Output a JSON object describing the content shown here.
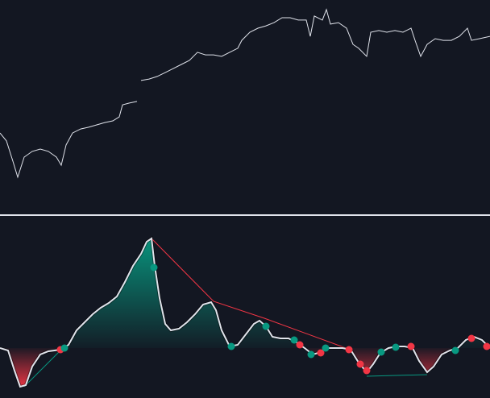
{
  "chart_data": [
    {
      "type": "line",
      "color": "#e0e3eb",
      "xlim": [
        0,
        608
      ],
      "ylim": [
        0,
        100
      ],
      "x": [
        0,
        8,
        16,
        22,
        30,
        40,
        50,
        60,
        70,
        76,
        82,
        90,
        100,
        110,
        120,
        130,
        140,
        148,
        152,
        160,
        170,
        172,
        175,
        185,
        195,
        205,
        215,
        225,
        235,
        245,
        255,
        265,
        275,
        285,
        295,
        300,
        310,
        320,
        330,
        340,
        350,
        360,
        370,
        380,
        385,
        390,
        400,
        405,
        410,
        420,
        430,
        438,
        445,
        455,
        460,
        470,
        480,
        490,
        500,
        510,
        515,
        522,
        530,
        540,
        550,
        560,
        570,
        580,
        585,
        595,
        608
      ],
      "values": [
        37.7,
        34,
        24.5,
        17,
        26.4,
        29.1,
        30.2,
        29.1,
        26.4,
        22.6,
        32.1,
        37.7,
        39.6,
        40.4,
        41.5,
        42.6,
        43.4,
        45.3,
        50.9,
        51.7,
        52.5,
        null,
        62.3,
        63,
        64.2,
        66,
        67.9,
        69.8,
        71.7,
        75.5,
        74.3,
        74.3,
        73.6,
        75.5,
        77.4,
        81.1,
        84.9,
        86.8,
        87.9,
        89.4,
        91.7,
        91.7,
        90.6,
        90.6,
        83,
        92.5,
        90.6,
        95.5,
        88.7,
        89.4,
        86.8,
        79.2,
        77.4,
        73.6,
        84.9,
        85.7,
        84.9,
        85.7,
        84.9,
        86.8,
        81.1,
        73.6,
        79.2,
        81.9,
        81.1,
        81.1,
        83,
        86.8,
        81.1,
        81.9,
        83
      ]
    },
    {
      "type": "oscillator",
      "color": "#e0e3eb",
      "up_color": "#089981",
      "down_color": "#f23645",
      "xlim": [
        0,
        608
      ],
      "ylim": [
        -62,
        164
      ],
      "x": [
        0,
        10,
        18,
        25,
        32,
        40,
        50,
        60,
        75,
        85,
        95,
        105,
        115,
        125,
        135,
        145,
        155,
        165,
        175,
        182,
        188,
        192,
        198,
        205,
        212,
        222,
        232,
        242,
        252,
        262,
        268,
        275,
        285,
        295,
        305,
        315,
        322,
        330,
        338,
        348,
        358,
        368,
        378,
        388,
        395,
        405,
        415,
        425,
        435,
        445,
        455,
        463,
        472,
        482,
        492,
        502,
        512,
        520,
        530,
        538,
        548,
        558,
        568,
        578,
        588,
        598,
        608
      ],
      "values": [
        0,
        -3,
        -28,
        -48,
        -46,
        -23,
        -8,
        -4,
        -2,
        4,
        22,
        32,
        42,
        50,
        56,
        64,
        82,
        102,
        117,
        132,
        136,
        102,
        62,
        30,
        22,
        24,
        32,
        42,
        54,
        57,
        47,
        22,
        2,
        4,
        17,
        30,
        34,
        27,
        14,
        12,
        12,
        7,
        0,
        -8,
        -6,
        0,
        0,
        0,
        -2,
        -18,
        -30,
        -20,
        -6,
        0,
        2,
        2,
        0,
        -16,
        -30,
        -23,
        -8,
        -3,
        0,
        10,
        14,
        10,
        0
      ],
      "markers": [
        {
          "color": "#f23645",
          "x": [
            75,
            372,
            398,
            433,
            447,
            455,
            510,
            585,
            604
          ],
          "values": [
            -2,
            4,
            -6,
            -2,
            -20,
            -28,
            2,
            12,
            2
          ]
        },
        {
          "color": "#089981",
          "x": [
            80,
            191,
            287,
            330,
            365,
            386,
            404,
            473,
            491,
            565
          ],
          "values": [
            0,
            100,
            2,
            27,
            10,
            -8,
            0,
            -5,
            1,
            -3
          ]
        }
      ],
      "lines": [
        {
          "color": "#f23645",
          "x": [
            188,
            265,
            328,
            432
          ],
          "values": [
            136,
            58,
            37,
            -1
          ]
        },
        {
          "color": "#089981",
          "x": [
            30,
            75
          ],
          "values": [
            -48,
            -3
          ]
        },
        {
          "color": "#089981",
          "x": [
            455,
            530
          ],
          "values": [
            -35,
            -33
          ]
        }
      ]
    }
  ]
}
